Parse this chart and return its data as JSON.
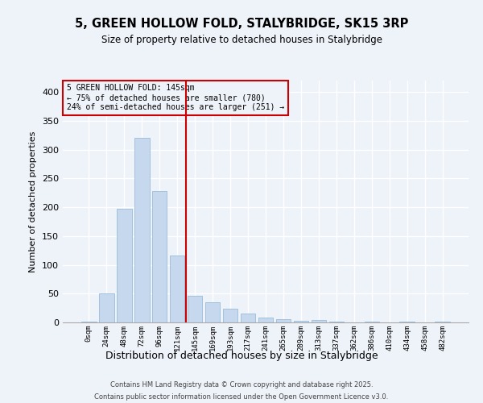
{
  "title": "5, GREEN HOLLOW FOLD, STALYBRIDGE, SK15 3RP",
  "subtitle": "Size of property relative to detached houses in Stalybridge",
  "xlabel": "Distribution of detached houses by size in Stalybridge",
  "ylabel": "Number of detached properties",
  "footer_line1": "Contains HM Land Registry data © Crown copyright and database right 2025.",
  "footer_line2": "Contains public sector information licensed under the Open Government Licence v3.0.",
  "annotation_title": "5 GREEN HOLLOW FOLD: 145sqm",
  "annotation_line2": "← 75% of detached houses are smaller (780)",
  "annotation_line3": "24% of semi-detached houses are larger (251) →",
  "categories": [
    "0sqm",
    "24sqm",
    "48sqm",
    "72sqm",
    "96sqm",
    "121sqm",
    "145sqm",
    "169sqm",
    "193sqm",
    "217sqm",
    "241sqm",
    "265sqm",
    "289sqm",
    "313sqm",
    "337sqm",
    "362sqm",
    "386sqm",
    "410sqm",
    "434sqm",
    "458sqm",
    "482sqm"
  ],
  "values": [
    2,
    51,
    197,
    320,
    228,
    116,
    46,
    35,
    24,
    15,
    9,
    5,
    3,
    4,
    1,
    0,
    2,
    0,
    1,
    0,
    2
  ],
  "bar_color": "#c5d8ed",
  "bar_edgecolor": "#8ab4d4",
  "highlight_line_color": "#cc0000",
  "annotation_box_edgecolor": "#cc0000",
  "background_color": "#eef2f9",
  "grid_color": "#ffffff",
  "ylim": [
    0,
    420
  ],
  "yticks": [
    0,
    50,
    100,
    150,
    200,
    250,
    300,
    350,
    400
  ],
  "highlight_index": 6,
  "figsize": [
    6.0,
    5.0
  ],
  "dpi": 100
}
